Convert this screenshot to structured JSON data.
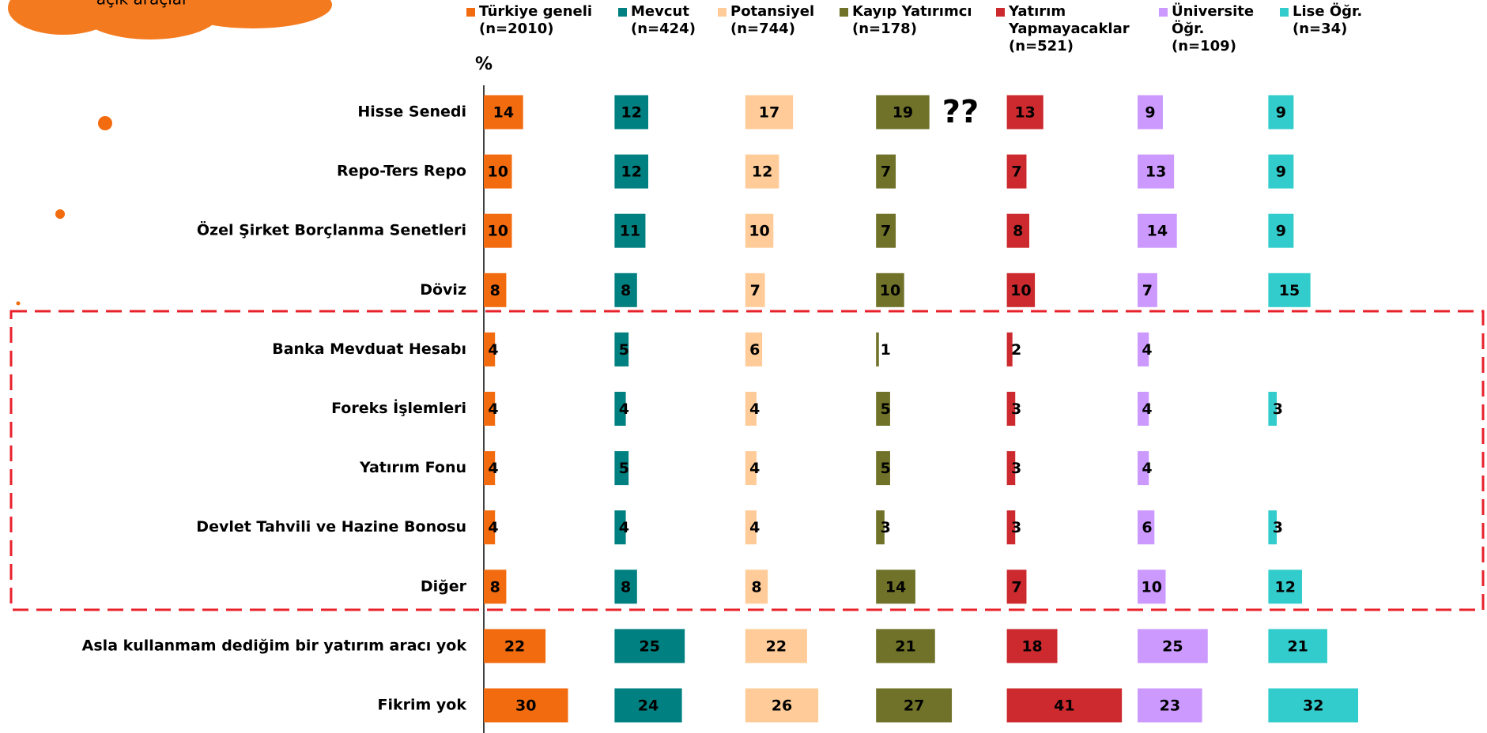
{
  "chart_data": {
    "type": "bar",
    "unit_label": "%",
    "annotations": [
      "??",
      "açık araçlar"
    ],
    "categories": [
      "Hisse Senedi",
      "Repo-Ters Repo",
      "Özel Şirket Borçlanma Senetleri",
      "Döviz",
      "Banka Mevduat Hesabı",
      "Foreks İşlemleri",
      "Yatırım Fonu",
      "Devlet Tahvili ve Hazine Bonosu",
      "Diğer",
      "Asla kullanmam dediğim bir yatırım aracı yok",
      "Fikrim yok"
    ],
    "series": [
      {
        "name": "Türkiye geneli",
        "sample": "(n=2010)",
        "color": "#f26b0f",
        "values": [
          14,
          10,
          10,
          8,
          4,
          4,
          4,
          4,
          8,
          22,
          30
        ]
      },
      {
        "name": "Mevcut",
        "sample": "(n=424)",
        "color": "#008080",
        "values": [
          12,
          12,
          11,
          8,
          5,
          4,
          5,
          4,
          8,
          25,
          24
        ]
      },
      {
        "name": "Potansiyel",
        "sample": "(n=744)",
        "color": "#ffcc99",
        "values": [
          17,
          12,
          10,
          7,
          6,
          4,
          4,
          4,
          8,
          22,
          26
        ]
      },
      {
        "name": "Kayıp Yatırımcı",
        "sample": "(n=178)",
        "color": "#6f7228",
        "values": [
          19,
          7,
          7,
          10,
          1,
          5,
          5,
          3,
          14,
          21,
          27
        ]
      },
      {
        "name": "Yatırım Yapmayacaklar",
        "sample": "(n=521)",
        "color": "#cc2a2e",
        "values": [
          13,
          7,
          8,
          10,
          2,
          3,
          3,
          3,
          7,
          18,
          41
        ]
      },
      {
        "name": "Üniversite Öğr.",
        "sample": "(n=109)",
        "color": "#cc99ff",
        "values": [
          9,
          13,
          14,
          7,
          4,
          4,
          4,
          6,
          10,
          25,
          23
        ]
      },
      {
        "name": "Lise Öğr.",
        "sample": "(n=34)",
        "color": "#33cccc",
        "values": [
          9,
          9,
          9,
          15,
          null,
          3,
          null,
          3,
          12,
          21,
          32
        ]
      }
    ]
  }
}
